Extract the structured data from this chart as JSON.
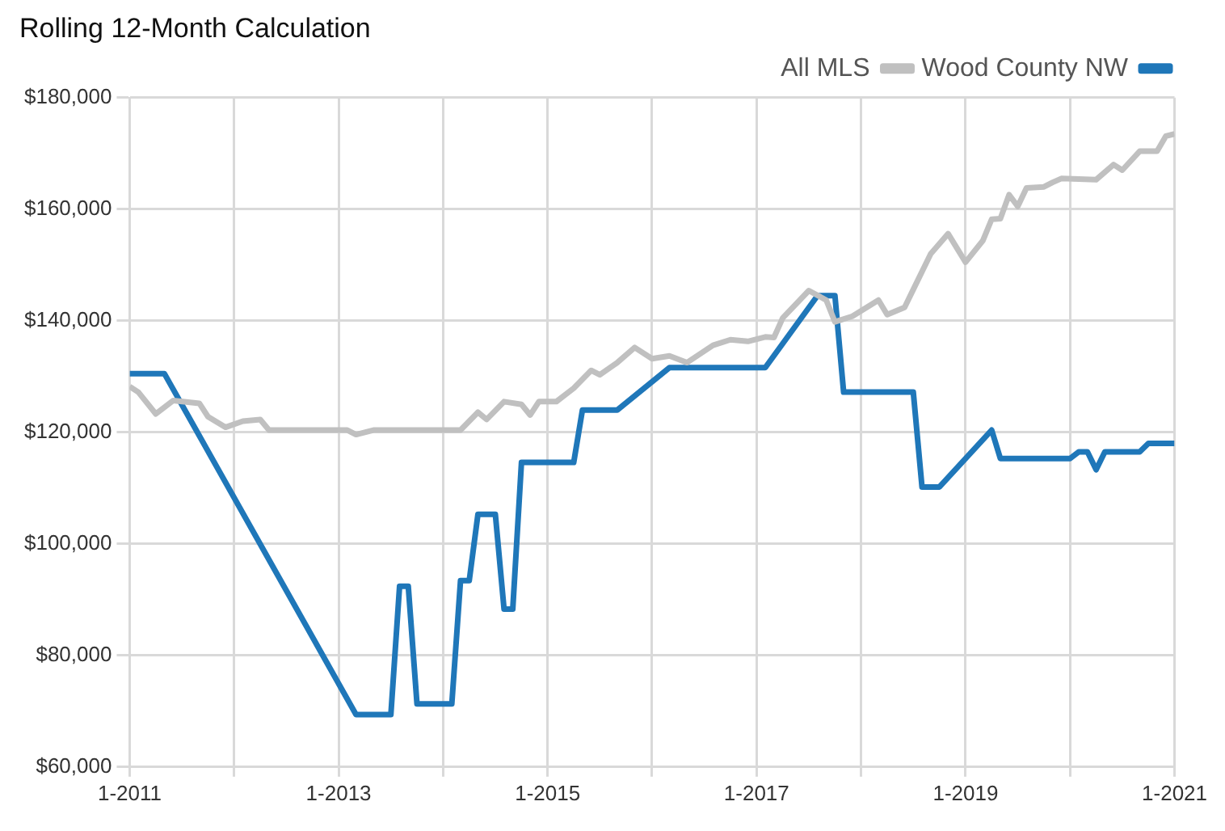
{
  "chart_data": {
    "type": "line",
    "title": "Rolling 12-Month Calculation",
    "legend": "top right",
    "grid": true,
    "marker": "none",
    "line_style": "solid",
    "xlim": [
      "2011-01",
      "2021-01"
    ],
    "xticks": [
      {
        "value": "2011-01",
        "label": "1-2011"
      },
      {
        "value": "2012-01",
        "label": null
      },
      {
        "value": "2013-01",
        "label": "1-2013"
      },
      {
        "value": "2014-01",
        "label": null
      },
      {
        "value": "2015-01",
        "label": "1-2015"
      },
      {
        "value": "2016-01",
        "label": null
      },
      {
        "value": "2017-01",
        "label": "1-2017"
      },
      {
        "value": "2018-01",
        "label": null
      },
      {
        "value": "2019-01",
        "label": "1-2019"
      },
      {
        "value": "2020-01",
        "label": null
      },
      {
        "value": "2021-01",
        "label": "1-2021"
      }
    ],
    "ylim": [
      60000,
      180000
    ],
    "yticks": [
      {
        "value": 60000,
        "label": "$60,000"
      },
      {
        "value": 80000,
        "label": "$80,000"
      },
      {
        "value": 100000,
        "label": "$100,000"
      },
      {
        "value": 120000,
        "label": "$120,000"
      },
      {
        "value": 140000,
        "label": "$140,000"
      },
      {
        "value": 160000,
        "label": "$160,000"
      },
      {
        "value": 180000,
        "label": "$180,000"
      }
    ],
    "series": [
      {
        "name": "All MLS",
        "color": "#c0c0c0",
        "x": [
          "2011-01",
          "2011-02",
          "2011-04",
          "2011-06",
          "2011-09",
          "2011-10",
          "2011-12",
          "2012-02",
          "2012-04",
          "2012-05",
          "2013-02",
          "2013-03",
          "2013-05",
          "2014-03",
          "2014-05",
          "2014-06",
          "2014-08",
          "2014-10",
          "2014-11",
          "2014-12",
          "2015-02",
          "2015-04",
          "2015-06",
          "2015-07",
          "2015-09",
          "2015-11",
          "2016-01",
          "2016-03",
          "2016-05",
          "2016-08",
          "2016-10",
          "2016-12",
          "2017-02",
          "2017-03",
          "2017-04",
          "2017-07",
          "2017-09",
          "2017-10",
          "2017-12",
          "2018-03",
          "2018-04",
          "2018-06",
          "2018-07",
          "2018-09",
          "2018-11",
          "2019-01",
          "2019-03",
          "2019-04",
          "2019-05",
          "2019-06",
          "2019-07",
          "2019-08",
          "2019-10",
          "2019-11",
          "2019-12",
          "2020-04",
          "2020-06",
          "2020-07",
          "2020-09",
          "2020-11",
          "2020-12",
          "2021-01"
        ],
        "values": [
          128200,
          127200,
          123300,
          125700,
          125200,
          122800,
          120900,
          122000,
          122300,
          120400,
          120400,
          119600,
          120400,
          120400,
          123600,
          122300,
          125500,
          125000,
          123100,
          125500,
          125500,
          127900,
          131100,
          130300,
          132500,
          135200,
          133200,
          133700,
          132500,
          135600,
          136600,
          136300,
          137100,
          137000,
          140500,
          145400,
          143700,
          139800,
          140800,
          143700,
          141100,
          142400,
          145600,
          152000,
          155600,
          150500,
          154400,
          158200,
          158300,
          162600,
          160500,
          163800,
          164000,
          164800,
          165500,
          165300,
          168000,
          167000,
          170400,
          170400,
          173100,
          173500
        ]
      },
      {
        "name": "Wood County NW",
        "color": "#1f77b9",
        "x": [
          "2011-01",
          "2011-05",
          "2013-03",
          "2013-07",
          "2013-08",
          "2013-09",
          "2013-10",
          "2014-02",
          "2014-03",
          "2014-04",
          "2014-05",
          "2014-07",
          "2014-08",
          "2014-09",
          "2014-10",
          "2015-04",
          "2015-05",
          "2015-09",
          "2016-03",
          "2017-02",
          "2017-08",
          "2017-10",
          "2017-11",
          "2018-07",
          "2018-08",
          "2018-10",
          "2019-04",
          "2019-05",
          "2020-01",
          "2020-02",
          "2020-03",
          "2020-04",
          "2020-05",
          "2020-09",
          "2020-10",
          "2021-01"
        ],
        "values": [
          130500,
          130500,
          69400,
          69400,
          92400,
          92400,
          71300,
          71300,
          93400,
          93400,
          105300,
          105300,
          88300,
          88300,
          114600,
          114600,
          124000,
          124000,
          131600,
          131600,
          144500,
          144500,
          127200,
          127200,
          110200,
          110200,
          120400,
          115300,
          115300,
          116500,
          116500,
          113300,
          116500,
          116500,
          118000,
          118000
        ]
      }
    ]
  }
}
